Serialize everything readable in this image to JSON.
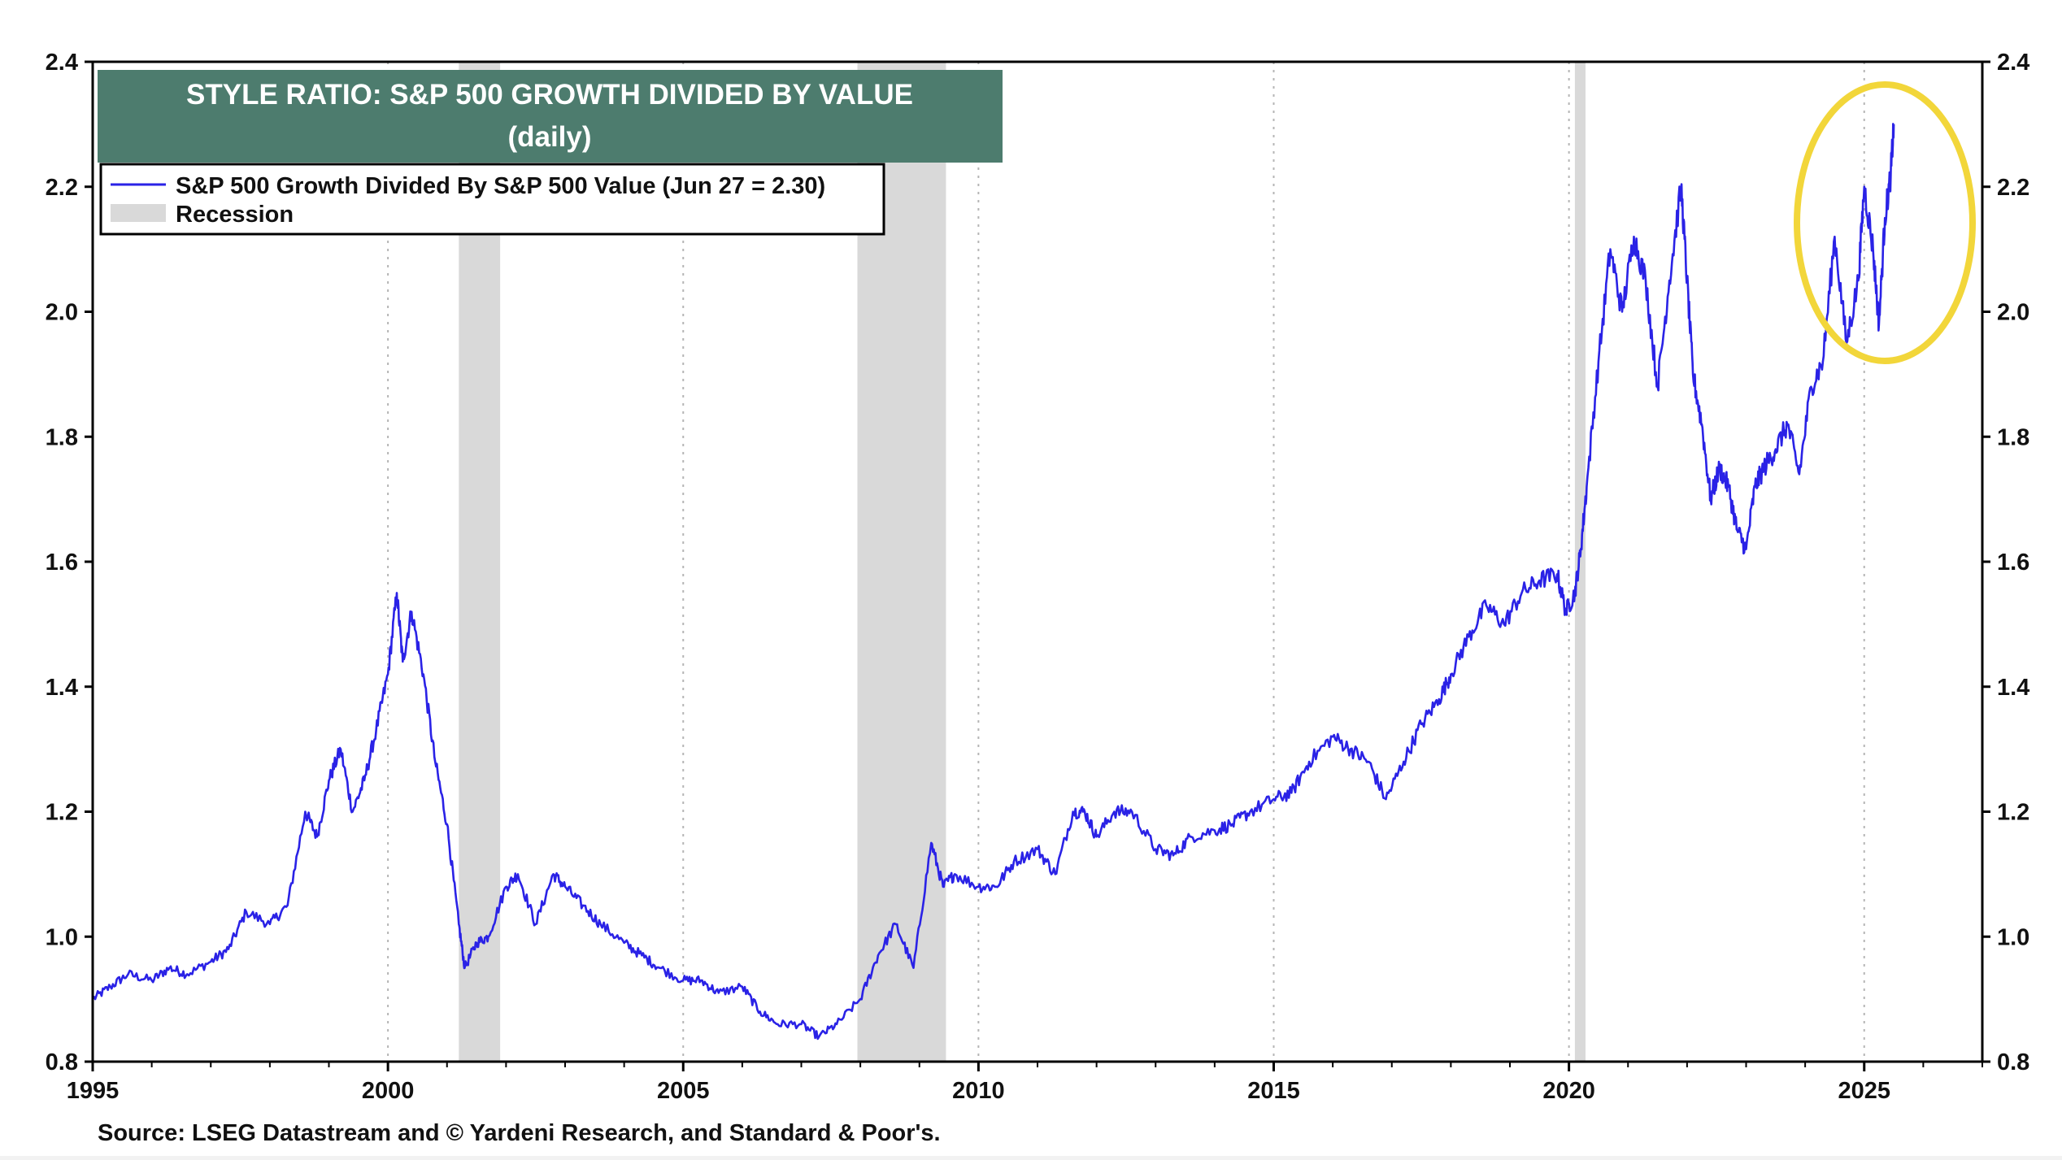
{
  "chart_data": {
    "type": "line",
    "title": "STYLE RATIO: S&P 500 GROWTH DIVIDED BY VALUE",
    "subtitle": "(daily)",
    "source": "Source: LSEG Datastream and © Yardeni Research, and Standard & Poor's.",
    "xlabel": "",
    "ylabel": "",
    "xlim": [
      1995,
      2027
    ],
    "ylim": [
      0.8,
      2.4
    ],
    "x_ticks": [
      "1995",
      "2000",
      "2005",
      "2010",
      "2015",
      "2020",
      "2025"
    ],
    "y_ticks": [
      "0.8",
      "1.0",
      "1.2",
      "1.4",
      "1.6",
      "1.8",
      "2.0",
      "2.2",
      "2.4"
    ],
    "grid": "vertical dotted at x ticks",
    "legend_placement": "top-left",
    "colors": {
      "series": "#2a22e6",
      "recession": "#d9d9d9",
      "title_band": "#4d7c6e",
      "title_text": "#ffffff",
      "highlight_circle": "#f2d63a"
    },
    "recessions": [
      {
        "start": 2001.2,
        "end": 2001.9
      },
      {
        "start": 2007.95,
        "end": 2009.45
      },
      {
        "start": 2020.1,
        "end": 2020.28
      }
    ],
    "series": [
      {
        "name": "S&P 500 Growth Divided By S&P 500 Value (Jun 27 = 2.30)",
        "x": [
          1995.0,
          1995.3,
          1995.6,
          1996.0,
          1996.3,
          1996.6,
          1997.0,
          1997.3,
          1997.6,
          1998.0,
          1998.3,
          1998.6,
          1998.8,
          1999.0,
          1999.2,
          1999.4,
          1999.6,
          1999.8,
          2000.0,
          2000.15,
          2000.25,
          2000.4,
          2000.6,
          2000.8,
          2001.0,
          2001.2,
          2001.3,
          2001.5,
          2001.7,
          2002.0,
          2002.2,
          2002.5,
          2002.8,
          2003.0,
          2003.3,
          2003.6,
          2004.0,
          2004.3,
          2004.6,
          2005.0,
          2005.3,
          2005.6,
          2006.0,
          2006.3,
          2006.6,
          2007.0,
          2007.3,
          2007.6,
          2008.0,
          2008.3,
          2008.6,
          2008.9,
          2009.2,
          2009.4,
          2009.6,
          2010.0,
          2010.3,
          2010.6,
          2011.0,
          2011.3,
          2011.6,
          2011.8,
          2012.0,
          2012.3,
          2012.6,
          2013.0,
          2013.3,
          2013.6,
          2014.0,
          2014.3,
          2014.6,
          2015.0,
          2015.3,
          2015.6,
          2016.0,
          2016.3,
          2016.6,
          2016.9,
          2017.2,
          2017.5,
          2017.8,
          2018.0,
          2018.3,
          2018.6,
          2018.9,
          2019.2,
          2019.5,
          2019.8,
          2019.95,
          2020.1,
          2020.2,
          2020.3,
          2020.5,
          2020.7,
          2020.9,
          2021.1,
          2021.3,
          2021.5,
          2021.7,
          2021.9,
          2022.0,
          2022.1,
          2022.25,
          2022.4,
          2022.55,
          2022.7,
          2022.85,
          2023.0,
          2023.15,
          2023.3,
          2023.5,
          2023.7,
          2023.9,
          2024.1,
          2024.3,
          2024.5,
          2024.7,
          2024.9,
          2025.0,
          2025.15,
          2025.25,
          2025.35,
          2025.45,
          2025.5
        ],
        "y": [
          0.9,
          0.92,
          0.94,
          0.93,
          0.95,
          0.94,
          0.96,
          0.98,
          1.04,
          1.02,
          1.05,
          1.2,
          1.16,
          1.25,
          1.3,
          1.2,
          1.25,
          1.33,
          1.42,
          1.55,
          1.44,
          1.52,
          1.42,
          1.28,
          1.18,
          1.02,
          0.95,
          0.99,
          1.0,
          1.08,
          1.1,
          1.02,
          1.1,
          1.08,
          1.05,
          1.02,
          0.99,
          0.97,
          0.95,
          0.93,
          0.93,
          0.91,
          0.92,
          0.88,
          0.86,
          0.86,
          0.84,
          0.86,
          0.9,
          0.97,
          1.02,
          0.95,
          1.15,
          1.08,
          1.1,
          1.08,
          1.08,
          1.12,
          1.14,
          1.1,
          1.2,
          1.2,
          1.16,
          1.2,
          1.2,
          1.14,
          1.13,
          1.16,
          1.17,
          1.18,
          1.2,
          1.22,
          1.23,
          1.28,
          1.32,
          1.3,
          1.28,
          1.22,
          1.28,
          1.34,
          1.38,
          1.42,
          1.48,
          1.53,
          1.5,
          1.55,
          1.57,
          1.58,
          1.52,
          1.55,
          1.62,
          1.72,
          1.92,
          2.1,
          2.0,
          2.12,
          2.05,
          1.88,
          2.05,
          2.2,
          2.05,
          1.9,
          1.82,
          1.7,
          1.75,
          1.72,
          1.65,
          1.62,
          1.72,
          1.75,
          1.78,
          1.82,
          1.74,
          1.88,
          1.92,
          2.12,
          1.95,
          2.05,
          2.2,
          2.1,
          1.98,
          2.15,
          2.22,
          2.3
        ]
      }
    ],
    "legend": {
      "series_label": "S&P 500 Growth Divided By S&P 500 Value (Jun 27 = 2.30)",
      "recession_label": "Recession"
    }
  }
}
